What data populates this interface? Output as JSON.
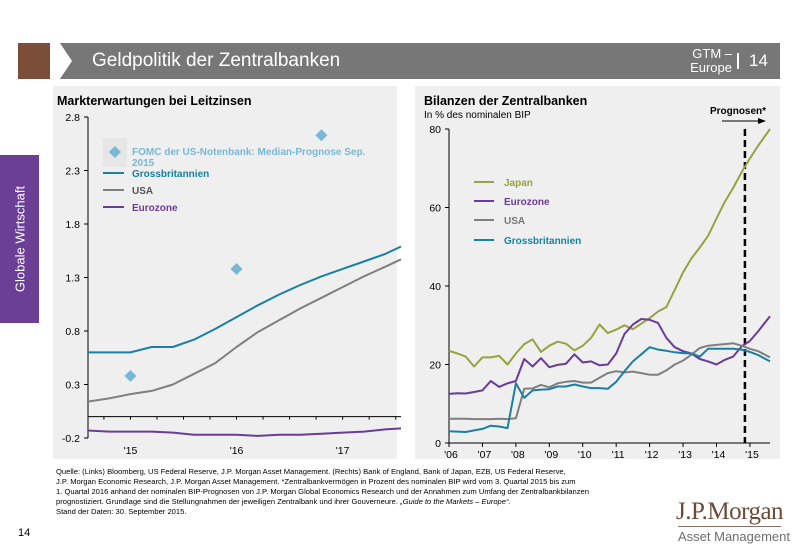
{
  "header": {
    "title": "Geldpolitik der Zentralbanken",
    "gtm": "GTM –\nEurope",
    "gtm_line1": "GTM –",
    "gtm_line2": "Europe",
    "page": "14"
  },
  "side_tab": {
    "label": "Globale Wirtschaft"
  },
  "colors": {
    "header_gray": "#777777",
    "chevron_brown": "#7a4e38",
    "side_tab_purple": "#6b3f96",
    "panel_bg": "#efefef",
    "grossbritannien": "#1a7fa3",
    "usa": "#7f7f7f",
    "eurozone": "#6a3b9a",
    "japan": "#98a23e",
    "fomc": "#78b8d4"
  },
  "chart_data": [
    {
      "type": "line",
      "title": "Markterwartungen bei Leitzinsen",
      "xlabel": "",
      "ylabel": "",
      "ylim": [
        -0.2,
        2.8
      ],
      "yticks": [
        "2.8",
        "2.3",
        "1.8",
        "1.3",
        "0.8",
        "0.3",
        "-0.2"
      ],
      "ytick_values": [
        2.8,
        2.3,
        1.8,
        1.3,
        0.8,
        0.3,
        -0.2
      ],
      "xticks": [
        "'15",
        "'16",
        "'17"
      ],
      "xtick_values": [
        2015.0,
        2016.0,
        2017.0
      ],
      "xlim": [
        2014.6,
        2017.55
      ],
      "grid": false,
      "legend_position": "top-left",
      "legend": [
        {
          "label": "FOMC der US-Notenbank: Median-Prognose Sep. 2015",
          "label_line1": "FOMC der US-Notenbank: Median-Prognose Sep.",
          "label_line2": "2015",
          "marker": "diamond",
          "color": "#78b8d4"
        },
        {
          "label": "Grossbritannien",
          "marker": "line",
          "color": "#1a7fa3"
        },
        {
          "label": "USA",
          "marker": "line",
          "color": "#7f7f7f"
        },
        {
          "label": "Eurozone",
          "marker": "line",
          "color": "#6a3b9a"
        }
      ],
      "x": [
        2014.6,
        2014.8,
        2015.0,
        2015.2,
        2015.4,
        2015.6,
        2015.8,
        2016.0,
        2016.2,
        2016.4,
        2016.6,
        2016.8,
        2017.0,
        2017.2,
        2017.4,
        2017.55
      ],
      "series": [
        {
          "name": "Grossbritannien",
          "color": "#1a7fa3",
          "values": [
            0.6,
            0.6,
            0.6,
            0.65,
            0.65,
            0.72,
            0.82,
            0.93,
            1.04,
            1.14,
            1.23,
            1.31,
            1.38,
            1.45,
            1.52,
            1.59
          ]
        },
        {
          "name": "USA",
          "color": "#7f7f7f",
          "values": [
            0.14,
            0.17,
            0.21,
            0.24,
            0.3,
            0.4,
            0.5,
            0.65,
            0.79,
            0.9,
            1.01,
            1.11,
            1.21,
            1.31,
            1.4,
            1.47
          ]
        },
        {
          "name": "Eurozone",
          "color": "#6a3b9a",
          "values": [
            -0.13,
            -0.14,
            -0.14,
            -0.14,
            -0.15,
            -0.17,
            -0.17,
            -0.17,
            -0.18,
            -0.17,
            -0.17,
            -0.16,
            -0.15,
            -0.14,
            -0.12,
            -0.11
          ]
        }
      ],
      "scatter": {
        "name": "FOMC der US-Notenbank: Median-Prognose Sep. 2015",
        "color": "#78b8d4",
        "points": [
          [
            2015.0,
            0.38
          ],
          [
            2016.0,
            1.38
          ],
          [
            2016.8,
            2.63
          ]
        ]
      }
    },
    {
      "type": "line",
      "title": "Bilanzen der Zentralbanken",
      "subtitle": "In % des nominalen BIP",
      "xlabel": "",
      "ylabel": "In % des nominalen BIP",
      "ylim": [
        0,
        80
      ],
      "yticks": [
        "80",
        "60",
        "40",
        "20",
        "0"
      ],
      "ytick_values": [
        80,
        60,
        40,
        20,
        0
      ],
      "xticks": [
        "'06",
        "'07",
        "'08",
        "'09",
        "'10",
        "'11",
        "'12",
        "'13",
        "'14",
        "'15"
      ],
      "xtick_values": [
        2006,
        2007,
        2008,
        2009,
        2010,
        2011,
        2012,
        2013,
        2014,
        2015
      ],
      "xlim": [
        2006,
        2015.6
      ],
      "grid": false,
      "legend_position": "top-left",
      "annotation": {
        "label": "Prognosen*",
        "x": 2014.85,
        "style": "dashed vertical line with right arrow"
      },
      "legend": [
        {
          "label": "Japan",
          "color": "#98a23e"
        },
        {
          "label": "Eurozone",
          "color": "#6a3b9a"
        },
        {
          "label": "USA",
          "color": "#7f7f7f"
        },
        {
          "label": "Grossbritannien",
          "color": "#1a7fa3"
        }
      ],
      "x": [
        2006.0,
        2006.25,
        2006.5,
        2006.75,
        2007.0,
        2007.25,
        2007.5,
        2007.75,
        2008.0,
        2008.25,
        2008.5,
        2008.75,
        2009.0,
        2009.25,
        2009.5,
        2009.75,
        2010.0,
        2010.25,
        2010.5,
        2010.75,
        2011.0,
        2011.25,
        2011.5,
        2011.75,
        2012.0,
        2012.25,
        2012.5,
        2012.75,
        2013.0,
        2013.25,
        2013.5,
        2013.75,
        2014.0,
        2014.25,
        2014.5,
        2014.75,
        2015.0,
        2015.25,
        2015.6
      ],
      "series": [
        {
          "name": "Japan",
          "color": "#98a23e",
          "values": [
            23.5,
            22.8,
            22.0,
            19.5,
            21.8,
            21.8,
            22.2,
            20.0,
            22.8,
            25.2,
            26.4,
            23.2,
            24.8,
            25.8,
            25.3,
            23.6,
            24.8,
            26.8,
            30.2,
            28.0,
            28.9,
            30.0,
            29.0,
            30.4,
            31.8,
            33.5,
            34.6,
            39.0,
            43.5,
            47.0,
            49.8,
            52.8,
            57.2,
            61.5,
            65.0,
            69.0,
            72.5,
            75.8,
            80.0
          ]
        },
        {
          "name": "Eurozone",
          "color": "#6a3b9a",
          "values": [
            12.5,
            12.7,
            12.6,
            13.0,
            13.4,
            15.8,
            14.3,
            15.2,
            15.8,
            21.4,
            19.5,
            21.6,
            19.3,
            19.9,
            20.2,
            22.6,
            20.5,
            20.8,
            19.8,
            20.0,
            22.8,
            27.8,
            30.2,
            31.6,
            31.4,
            30.6,
            26.8,
            24.4,
            23.4,
            22.8,
            21.4,
            20.8,
            20.0,
            21.2,
            22.0,
            24.6,
            26.0,
            28.5,
            32.3
          ]
        },
        {
          "name": "USA",
          "color": "#7f7f7f",
          "values": [
            6.2,
            6.2,
            6.2,
            6.1,
            6.1,
            6.1,
            6.2,
            6.1,
            6.3,
            13.8,
            13.9,
            14.8,
            14.2,
            15.2,
            15.6,
            15.8,
            15.4,
            15.4,
            16.6,
            17.8,
            18.3,
            18.0,
            18.2,
            17.8,
            17.4,
            17.4,
            18.5,
            20.0,
            21.0,
            22.5,
            24.2,
            24.8,
            25.0,
            25.2,
            25.4,
            24.8,
            24.0,
            23.4,
            21.8
          ]
        },
        {
          "name": "Grossbritannien",
          "color": "#1a7fa3",
          "values": [
            3.0,
            2.9,
            2.8,
            3.2,
            3.6,
            4.4,
            4.2,
            3.8,
            15.2,
            11.5,
            13.4,
            13.6,
            13.7,
            14.4,
            14.4,
            14.9,
            14.4,
            14.0,
            14.0,
            13.8,
            15.6,
            18.3,
            20.8,
            22.6,
            24.4,
            23.8,
            23.5,
            23.1,
            22.9,
            22.8,
            22.0,
            24.0,
            24.0,
            24.0,
            24.0,
            23.8,
            23.2,
            22.4,
            20.8
          ]
        }
      ]
    }
  ],
  "footnote": {
    "line1": "Quelle: (Links) Bloomberg, US Federal Reserve, J.P. Morgan Asset Management. (Rechts) Bank of England, Bank of Japan, EZB, US Federal Reserve,",
    "line2": "J.P. Morgan Economic Research, J.P. Morgan Asset Management. *Zentralbankvermögen in Prozent des nominalen BIP wird vom 3. Quartal 2015 bis zum",
    "line3": "1. Quartal 2016 anhand der nominalen BIP-Prognosen von J.P. Morgan Global Economics Research und der Annahmen zum Umfang der Zentralbankbilanzen",
    "line4_a": "prognostiziert. Grundlage sind die Stellungnahmen der jeweiligen Zentralbank und ihrer Gouverneure. ",
    "line4_b": "„Guide to the Markets – Europe“.",
    "line5": "Stand der Daten: 30. September 2015."
  },
  "page_number": "14",
  "logo": {
    "main": "J.P.Morgan",
    "sub": "Asset Management"
  }
}
